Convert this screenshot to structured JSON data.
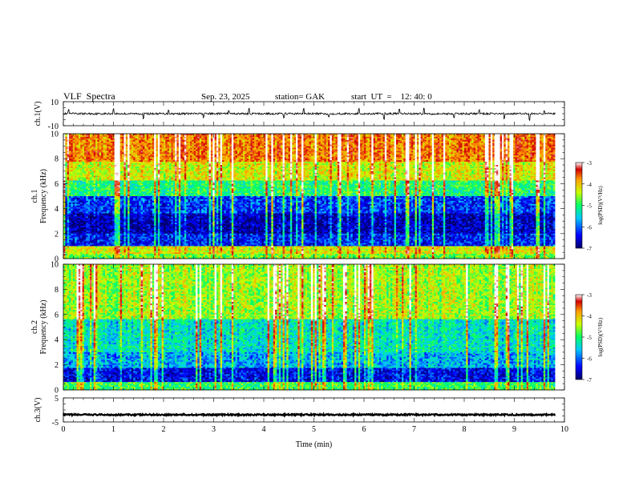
{
  "header": {
    "title": "VLF  Spectra",
    "date": "Sep. 23, 2025",
    "station": "station= GAK",
    "start_ut": "start  UT  =    12: 40: 0"
  },
  "colors": {
    "waveform": "#000000",
    "axis": "#000000",
    "colormap": [
      "#00006a",
      "#0000ff",
      "#00c8ff",
      "#00ff66",
      "#c8ff00",
      "#ffa000",
      "#d20000",
      "#ffffff"
    ]
  },
  "chart_data": [
    {
      "id": "ch1_waveform",
      "type": "line",
      "ylabel": "ch.1(V)",
      "ylim": [
        -10,
        10
      ],
      "yticks": [
        "10",
        "-10"
      ],
      "xlim": [
        0,
        10
      ],
      "description_level": 0,
      "noise_amplitude": 0.8,
      "spikes": [
        [
          0.1,
          3
        ],
        [
          1.0,
          4
        ],
        [
          1.6,
          -4
        ],
        [
          2.1,
          3
        ],
        [
          2.8,
          -3
        ],
        [
          3.3,
          3
        ],
        [
          3.7,
          4
        ],
        [
          4.4,
          -3
        ],
        [
          4.8,
          4
        ],
        [
          5.3,
          -3
        ],
        [
          5.9,
          4
        ],
        [
          6.4,
          -4
        ],
        [
          6.7,
          3
        ],
        [
          7.2,
          4
        ],
        [
          7.8,
          -3
        ],
        [
          8.3,
          3
        ],
        [
          8.8,
          -4
        ],
        [
          9.3,
          -5
        ],
        [
          9.6,
          3
        ]
      ]
    },
    {
      "id": "ch1_spectrogram",
      "type": "heatmap",
      "ylabel": "ch.1\nFrequency  (kHz)",
      "xlim": [
        0,
        10
      ],
      "ylim": [
        0,
        10
      ],
      "yticks": [
        "0",
        "2",
        "4",
        "6",
        "8",
        "10"
      ],
      "colorbar": {
        "label": "log(PSD)(V²/Hz)",
        "range": [
          -7,
          -3
        ],
        "ticks": [
          "-3",
          "-4",
          "-5",
          "-6",
          "-7"
        ]
      },
      "bands": [
        {
          "f_range": [
            0,
            0.4
          ],
          "level": -5.0
        },
        {
          "f_range": [
            0.4,
            1.0
          ],
          "level": -4.6
        },
        {
          "f_range": [
            1.0,
            2.0
          ],
          "level": -6.4
        },
        {
          "f_range": [
            2.0,
            3.6
          ],
          "level": -6.7
        },
        {
          "f_range": [
            3.6,
            5.0
          ],
          "level": -6.3
        },
        {
          "f_range": [
            5.0,
            6.2
          ],
          "level": -5.3
        },
        {
          "f_range": [
            6.2,
            7.8
          ],
          "level": -4.6
        },
        {
          "f_range": [
            7.8,
            10.0
          ],
          "level": -4.0
        }
      ]
    },
    {
      "id": "ch2_spectrogram",
      "type": "heatmap",
      "ylabel": "ch.2\nFrequency  (kHz)",
      "xlim": [
        0,
        10
      ],
      "ylim": [
        0,
        10
      ],
      "yticks": [
        "0",
        "2",
        "4",
        "6",
        "8",
        "10"
      ],
      "colorbar": {
        "label": "log(PSD)(V²/Hz)",
        "range": [
          -7,
          -3
        ],
        "ticks": [
          "-3",
          "-4",
          "-5",
          "-6",
          "-7"
        ]
      },
      "bands": [
        {
          "f_range": [
            0,
            0.6
          ],
          "level": -5.2
        },
        {
          "f_range": [
            0.6,
            1.8
          ],
          "level": -6.5
        },
        {
          "f_range": [
            1.8,
            3.0
          ],
          "level": -5.9
        },
        {
          "f_range": [
            3.0,
            5.6
          ],
          "level": -5.6
        },
        {
          "f_range": [
            5.6,
            6.6
          ],
          "level": -4.8
        },
        {
          "f_range": [
            6.6,
            10.0
          ],
          "level": -4.8
        }
      ]
    },
    {
      "id": "ch3_waveform",
      "type": "line",
      "ylabel": "ch.3(V)",
      "ylim": [
        -5,
        5
      ],
      "yticks": [
        "5",
        "-5"
      ],
      "xlim": [
        0,
        10
      ],
      "description_level": -2,
      "noise_amplitude": 0.3,
      "spikes": []
    }
  ],
  "xaxis": {
    "label": "Time  (min)",
    "ticks": [
      "0",
      "1",
      "2",
      "3",
      "4",
      "5",
      "6",
      "7",
      "8",
      "9",
      "10"
    ]
  }
}
